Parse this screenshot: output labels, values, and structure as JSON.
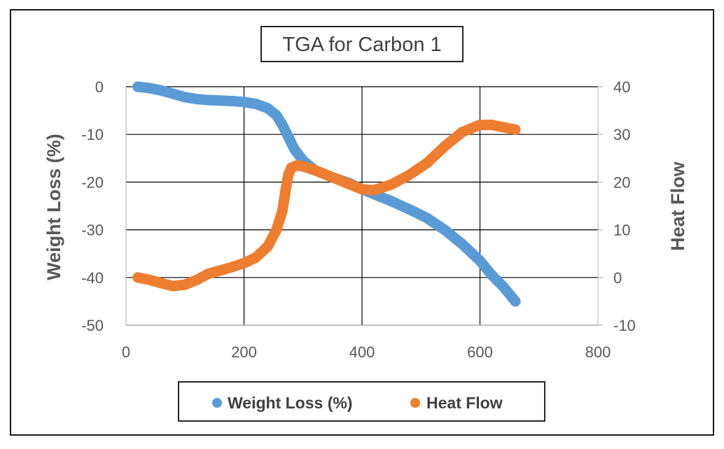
{
  "chart_data": {
    "type": "scatter",
    "title": "TGA for Carbon 1",
    "xlabel": "",
    "ylabel": "Weight Loss (%)",
    "y2label": "Heat Flow",
    "xlim": [
      0,
      800
    ],
    "ylim": [
      -50,
      0
    ],
    "y2lim": [
      -10,
      40
    ],
    "x_ticks": [
      "0",
      "200",
      "400",
      "600",
      "800"
    ],
    "y_ticks": [
      "0",
      "-10",
      "-20",
      "-30",
      "-40",
      "-50"
    ],
    "y2_ticks": [
      "40",
      "30",
      "20",
      "10",
      "0",
      "-10"
    ],
    "grid": true,
    "legend_position": "bottom",
    "series": [
      {
        "name": "Weight Loss (%)",
        "axis": "left",
        "color": "#5B9BD5",
        "x": [
          20,
          40,
          60,
          80,
          100,
          120,
          140,
          160,
          180,
          200,
          220,
          240,
          255,
          265,
          275,
          285,
          300,
          320,
          350,
          380,
          400,
          420,
          450,
          480,
          510,
          540,
          570,
          600,
          620,
          640,
          660
        ],
        "y": [
          0,
          -0.3,
          -0.8,
          -1.5,
          -2.2,
          -2.6,
          -2.8,
          -2.9,
          -3.0,
          -3.2,
          -3.6,
          -4.5,
          -6.0,
          -8.0,
          -10.5,
          -13.0,
          -15.5,
          -17.5,
          -19.0,
          -20.3,
          -21.5,
          -22.5,
          -24.0,
          -25.7,
          -27.5,
          -30.0,
          -33.0,
          -36.5,
          -39.5,
          -42.0,
          -45.0
        ]
      },
      {
        "name": "Heat Flow",
        "axis": "right",
        "color": "#ED7D31",
        "x": [
          20,
          40,
          60,
          80,
          100,
          120,
          140,
          160,
          180,
          200,
          220,
          240,
          255,
          265,
          270,
          275,
          280,
          290,
          300,
          320,
          350,
          380,
          400,
          420,
          450,
          480,
          510,
          540,
          570,
          600,
          620,
          640,
          660
        ],
        "y": [
          0,
          -0.5,
          -1.2,
          -1.8,
          -1.5,
          -0.5,
          0.8,
          1.5,
          2.2,
          3.0,
          4.2,
          6.5,
          10.0,
          14.0,
          18.0,
          21.5,
          23.0,
          23.5,
          23.3,
          22.5,
          21.0,
          19.5,
          18.5,
          18.3,
          19.5,
          21.5,
          24.0,
          27.5,
          30.5,
          32.0,
          32.0,
          31.5,
          31.0
        ]
      }
    ]
  }
}
